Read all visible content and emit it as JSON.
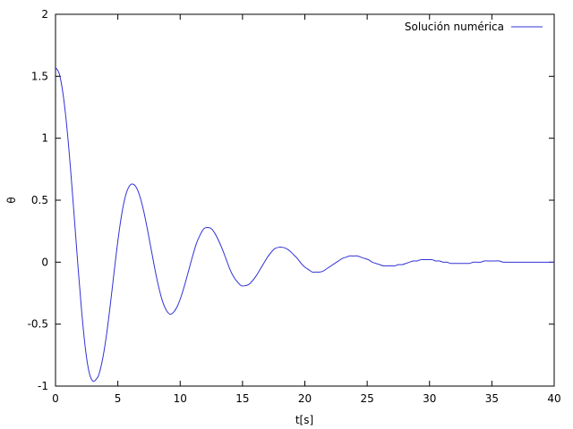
{
  "chart_data": {
    "type": "line",
    "title": "",
    "xlabel": "t[s]",
    "ylabel": "θ",
    "xlim": [
      0,
      40
    ],
    "ylim": [
      -1,
      2
    ],
    "xticks": [
      0,
      5,
      10,
      15,
      20,
      25,
      30,
      35,
      40
    ],
    "yticks": [
      -1,
      -0.5,
      0,
      0.5,
      1,
      1.5,
      2
    ],
    "xtick_labels": [
      "0",
      "5",
      "10",
      "15",
      "20",
      "25",
      "30",
      "35",
      "40"
    ],
    "ytick_labels": [
      "-1",
      "-0.5",
      "0",
      "0.5",
      "1",
      "1.5",
      "2"
    ],
    "grid": false,
    "legend_position": "top-right",
    "series": [
      {
        "name": "Solución numérica",
        "color": "#3232d6",
        "x": [
          0,
          0.3,
          0.6,
          0.9,
          1.2,
          1.5,
          1.8,
          2.1,
          2.4,
          2.7,
          3.0,
          3.3,
          3.5,
          3.8,
          4.1,
          4.4,
          4.7,
          5.0,
          5.3,
          5.6,
          5.9,
          6.2,
          6.5,
          6.8,
          7.1,
          7.4,
          7.7,
          8.0,
          8.3,
          8.6,
          8.9,
          9.2,
          9.5,
          9.8,
          10.1,
          10.4,
          10.7,
          11.0,
          11.3,
          11.6,
          11.9,
          12.2,
          12.5,
          12.8,
          13.1,
          13.4,
          13.7,
          14.0,
          14.3,
          14.6,
          14.9,
          15.2,
          15.5,
          15.8,
          16.1,
          16.4,
          16.7,
          17.0,
          17.3,
          17.6,
          17.9,
          18.2,
          18.5,
          18.8,
          19.1,
          19.4,
          19.7,
          20.0,
          20.3,
          20.6,
          20.9,
          21.2,
          21.5,
          21.8,
          22.1,
          22.4,
          22.7,
          23.0,
          23.3,
          23.6,
          23.9,
          24.2,
          24.5,
          24.8,
          25.1,
          25.4,
          25.7,
          26.0,
          26.3,
          26.6,
          26.9,
          27.2,
          27.5,
          27.8,
          28.1,
          28.4,
          28.7,
          29.0,
          29.3,
          29.6,
          29.9,
          30.2,
          30.5,
          30.8,
          31.1,
          31.4,
          31.7,
          32.0,
          32.3,
          32.6,
          32.9,
          33.2,
          33.5,
          33.8,
          34.1,
          34.4,
          34.7,
          35.0,
          35.3,
          35.6,
          35.9,
          36.2,
          36.5,
          36.8,
          37.1,
          37.4,
          37.7,
          38.0,
          38.3,
          38.6,
          38.9,
          39.2,
          39.5,
          39.8,
          40.0
        ],
        "y": [
          1.571,
          1.52,
          1.36,
          1.1,
          0.76,
          0.37,
          -0.03,
          -0.4,
          -0.7,
          -0.89,
          -0.96,
          -0.94,
          -0.9,
          -0.77,
          -0.58,
          -0.34,
          -0.08,
          0.17,
          0.38,
          0.53,
          0.61,
          0.63,
          0.6,
          0.52,
          0.4,
          0.25,
          0.09,
          -0.07,
          -0.21,
          -0.32,
          -0.39,
          -0.42,
          -0.4,
          -0.35,
          -0.27,
          -0.17,
          -0.06,
          0.05,
          0.15,
          0.22,
          0.27,
          0.28,
          0.27,
          0.23,
          0.17,
          0.1,
          0.02,
          -0.06,
          -0.12,
          -0.16,
          -0.19,
          -0.19,
          -0.18,
          -0.15,
          -0.11,
          -0.06,
          -0.01,
          0.04,
          0.08,
          0.11,
          0.12,
          0.12,
          0.11,
          0.09,
          0.06,
          0.03,
          -0.01,
          -0.04,
          -0.06,
          -0.08,
          -0.08,
          -0.08,
          -0.07,
          -0.05,
          -0.03,
          -0.01,
          0.01,
          0.03,
          0.04,
          0.05,
          0.05,
          0.05,
          0.04,
          0.03,
          0.02,
          0.0,
          -0.01,
          -0.02,
          -0.03,
          -0.03,
          -0.03,
          -0.03,
          -0.02,
          -0.02,
          -0.01,
          0.0,
          0.01,
          0.01,
          0.02,
          0.02,
          0.02,
          0.02,
          0.01,
          0.01,
          0.0,
          0.0,
          -0.01,
          -0.01,
          -0.01,
          -0.01,
          -0.01,
          -0.01,
          0.0,
          0.0,
          0.0,
          0.01,
          0.01,
          0.01,
          0.01,
          0.01,
          0.0,
          0.0,
          0.0,
          0.0,
          0.0,
          0.0,
          0.0,
          0.0,
          0.0,
          0.0,
          0.0,
          0.0,
          0.0,
          0.0,
          0.0
        ]
      }
    ]
  }
}
